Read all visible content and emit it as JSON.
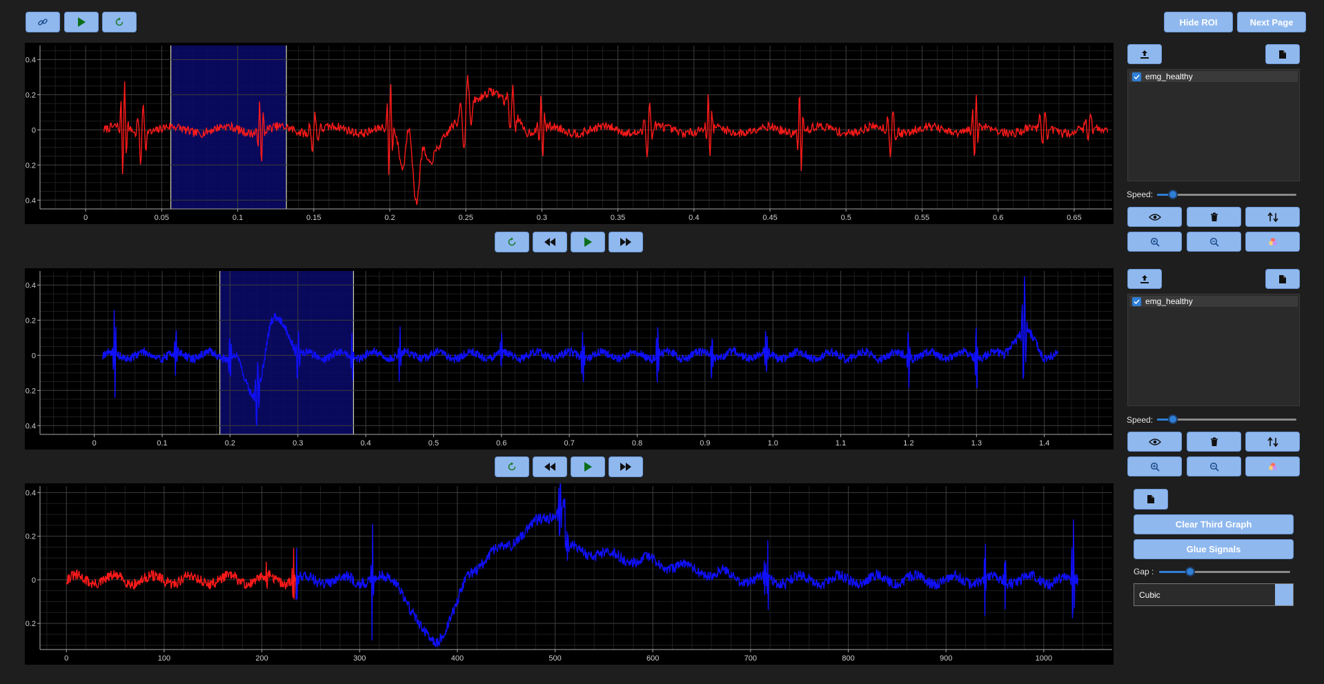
{
  "toolbar": {
    "link_icon": "link-icon",
    "play_icon": "play-icon",
    "reset_icon": "refresh-icon",
    "hide_roi_label": "Hide ROI",
    "next_page_label": "Next Page"
  },
  "colors": {
    "accent": "#8fb8ee",
    "signal1": "#ff1a1a",
    "signal2": "#1010ff",
    "roi": "#0b0b6b"
  },
  "graph1": {
    "y_ticks": [
      "0.4",
      "0.2",
      "0",
      "-0.2",
      "-0.4"
    ],
    "x_ticks": [
      "0",
      "0.05",
      "0.1",
      "0.15",
      "0.2",
      "0.25",
      "0.3",
      "0.35",
      "0.4",
      "0.45",
      "0.5",
      "0.55",
      "0.6",
      "0.65"
    ],
    "xlim": [
      -0.03,
      0.675
    ],
    "ylim": [
      -0.45,
      0.48
    ],
    "roi": [
      0.056,
      0.132
    ],
    "panel": {
      "upload_icon": "upload-icon",
      "file_icon": "file-icon",
      "signal_name": "emg_healthy",
      "speed_label": "Speed:",
      "speed_value": 0.13
    }
  },
  "graph2": {
    "y_ticks": [
      "0.4",
      "0.2",
      "0",
      "-0.2",
      "-0.4"
    ],
    "x_ticks": [
      "0",
      "0.1",
      "0.2",
      "0.3",
      "0.4",
      "0.5",
      "0.6",
      "0.7",
      "0.8",
      "0.9",
      "1.0",
      "1.1",
      "1.2",
      "1.3",
      "1.4"
    ],
    "xlim": [
      -0.08,
      1.5
    ],
    "ylim": [
      -0.45,
      0.48
    ],
    "roi": [
      0.185,
      0.382
    ],
    "panel": {
      "upload_icon": "upload-icon",
      "file_icon": "file-icon",
      "signal_name": "emg_healthy",
      "speed_label": "Speed:",
      "speed_value": 0.13
    }
  },
  "graph3": {
    "y_ticks": [
      "0.4",
      "0.2",
      "0",
      "-0.2"
    ],
    "x_ticks": [
      "0",
      "100",
      "200",
      "300",
      "400",
      "500",
      "600",
      "700",
      "800",
      "900",
      "1000"
    ],
    "xlim": [
      -27,
      1070
    ],
    "ylim": [
      -0.32,
      0.43
    ],
    "red_end": 235
  },
  "playback": {
    "reset_icon": "refresh-icon",
    "rewind_icon": "rewind-icon",
    "play_icon": "play-icon",
    "forward_icon": "fast-forward-icon"
  },
  "third_panel": {
    "file_icon": "file-icon",
    "clear_label": "Clear Third Graph",
    "glue_label": "Glue Signals",
    "gap_label": "Gap :",
    "gap_value": 0.22,
    "interpolation_value": "Cubic"
  }
}
